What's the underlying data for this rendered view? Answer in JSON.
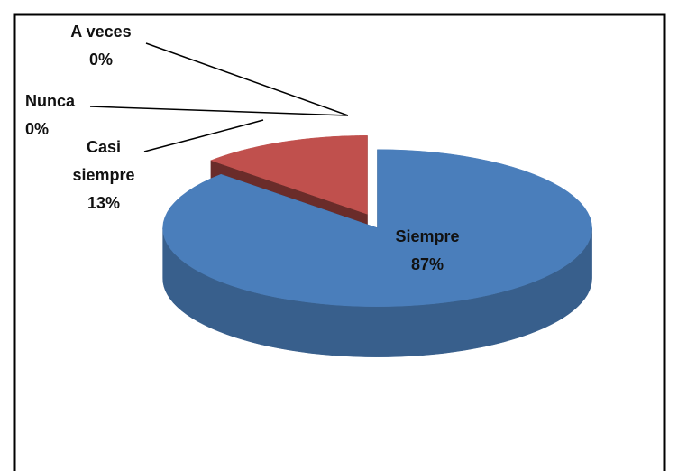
{
  "chart_data": {
    "type": "pie3d",
    "categories": [
      "Siempre",
      "Casi siempre",
      "Nunca",
      "A veces"
    ],
    "values": [
      87,
      13,
      0,
      0
    ],
    "value_labels": [
      "87%",
      "13%",
      "0%",
      "0%"
    ],
    "colors": [
      "#4a7ebb",
      "#c0504d",
      "#9bbb59",
      "#8064a2"
    ]
  }
}
